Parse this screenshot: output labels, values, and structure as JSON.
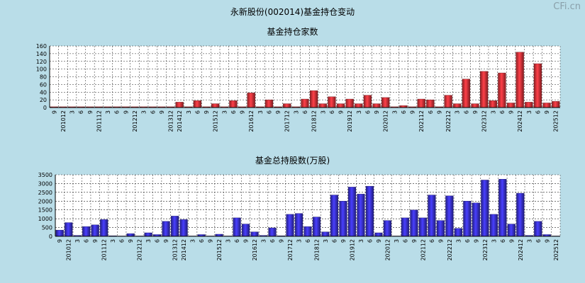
{
  "header": {
    "title": "永新股份(002014)基金持仓变动",
    "watermark": "CFi.cn"
  },
  "chart_data": [
    {
      "type": "bar",
      "title": "基金持仓家数",
      "ylim": [
        0,
        160
      ],
      "yticks": [
        0,
        20,
        40,
        60,
        80,
        100,
        120,
        140,
        160
      ],
      "color": "#e8333a",
      "categories": [
        "9",
        "201012",
        "3",
        "6",
        "9",
        "201112",
        "3",
        "6",
        "9",
        "201212",
        "3",
        "6",
        "9",
        "201312",
        "201412",
        "3",
        "6",
        "9",
        "201512",
        "3",
        "6",
        "9",
        "201612",
        "3",
        "6",
        "9",
        "201712",
        "3",
        "6",
        "201812",
        "3",
        "6",
        "9",
        "201912",
        "3",
        "6",
        "9",
        "202012",
        "3",
        "6",
        "9",
        "202112",
        "6",
        "9",
        "202212",
        "3",
        "6",
        "9",
        "202312",
        "3",
        "6",
        "9",
        "202412",
        "3",
        "6",
        "9",
        "202512"
      ],
      "values": [
        2,
        2,
        2,
        2,
        2,
        2,
        2,
        2,
        2,
        2,
        2,
        2,
        2,
        2,
        14,
        2,
        18,
        2,
        10,
        2,
        18,
        2,
        38,
        2,
        20,
        2,
        10,
        2,
        22,
        44,
        10,
        28,
        10,
        22,
        10,
        32,
        10,
        26,
        2,
        5,
        2,
        22,
        20,
        2,
        32,
        10,
        74,
        10,
        94,
        18,
        90,
        12,
        144,
        14,
        114,
        12,
        16
      ]
    },
    {
      "type": "bar",
      "title": "基金总持股数(万股)",
      "ylim": [
        0,
        3500
      ],
      "yticks": [
        0,
        500,
        1000,
        1500,
        2000,
        2500,
        3000,
        3500
      ],
      "color": "#3a32e0",
      "categories": [
        "9",
        "201012",
        "3",
        "6",
        "9",
        "201112",
        "3",
        "6",
        "9",
        "201212",
        "3",
        "6",
        "9",
        "201312",
        "201412",
        "3",
        "6",
        "9",
        "201512",
        "3",
        "6",
        "9",
        "201612",
        "3",
        "6",
        "9",
        "201712",
        "3",
        "6",
        "201812",
        "3",
        "6",
        "9",
        "201912",
        "3",
        "6",
        "9",
        "202012",
        "3",
        "6",
        "9",
        "202112",
        "6",
        "9",
        "202212",
        "3",
        "6",
        "9",
        "202312",
        "3",
        "6",
        "9",
        "202412",
        "3",
        "6",
        "9",
        "202512"
      ],
      "values": [
        350,
        780,
        50,
        550,
        650,
        950,
        30,
        20,
        150,
        20,
        200,
        100,
        850,
        1150,
        950,
        20,
        100,
        20,
        120,
        20,
        1050,
        700,
        250,
        50,
        480,
        30,
        1250,
        1300,
        550,
        1100,
        250,
        2350,
        2000,
        2800,
        2400,
        2850,
        200,
        900,
        20,
        1050,
        1500,
        1050,
        2350,
        900,
        2300,
        450,
        2000,
        1900,
        3200,
        1250,
        3250,
        700,
        2450,
        50,
        850,
        100,
        20
      ]
    }
  ]
}
